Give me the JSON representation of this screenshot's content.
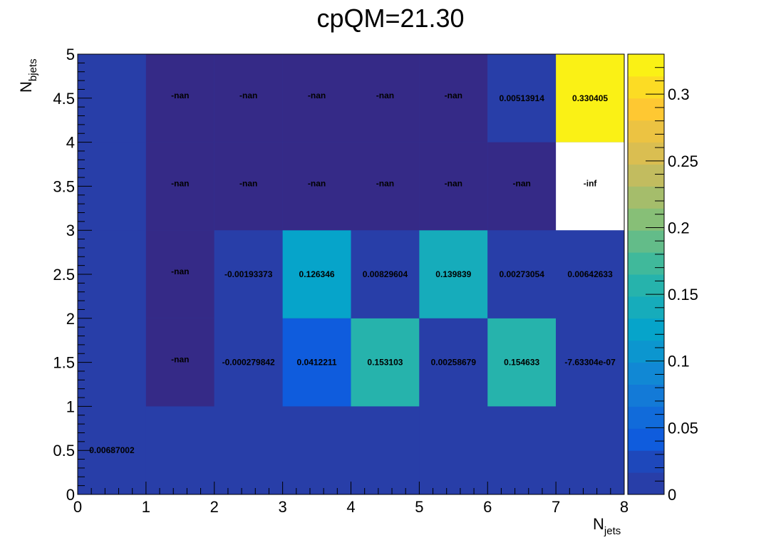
{
  "chart_data": {
    "type": "heatmap",
    "title": "cpQM=21.30",
    "xlabel": {
      "base": "N",
      "sub": "jets"
    },
    "ylabel": {
      "base": "N",
      "sub": "bjets"
    },
    "xlim": [
      0,
      8
    ],
    "ylim": [
      0,
      5
    ],
    "x_ticks": [
      "0",
      "1",
      "2",
      "3",
      "4",
      "5",
      "6",
      "7",
      "8"
    ],
    "y_ticks": [
      "0",
      "0.5",
      "1",
      "1.5",
      "2",
      "2.5",
      "3",
      "3.5",
      "4",
      "4.5",
      "5"
    ],
    "x_bin_edges": [
      0,
      1,
      2,
      3,
      4,
      5,
      6,
      7,
      8
    ],
    "y_bin_edges": [
      0,
      1,
      2,
      3,
      4,
      5
    ],
    "zlim": [
      0,
      0.33
    ],
    "z_ticks": [
      "0",
      "0.05",
      "0.1",
      "0.15",
      "0.2",
      "0.25",
      "0.3"
    ],
    "colormap": [
      "#352a87",
      "#0f5cdd",
      "#1481d6",
      "#06a4ca",
      "#2eb7a4",
      "#87bf77",
      "#d1bb59",
      "#fec832",
      "#f9fb0e"
    ],
    "cells": [
      {
        "x": 0,
        "y": 0,
        "value": 0.00687002,
        "label": "0.00687002"
      },
      {
        "x": 1,
        "y": 0,
        "value": 0.00687002,
        "label": ""
      },
      {
        "x": 2,
        "y": 0,
        "value": 0.00687002,
        "label": ""
      },
      {
        "x": 3,
        "y": 0,
        "value": 0.00687002,
        "label": ""
      },
      {
        "x": 4,
        "y": 0,
        "value": 0.00687002,
        "label": ""
      },
      {
        "x": 5,
        "y": 0,
        "value": 0.00687002,
        "label": ""
      },
      {
        "x": 6,
        "y": 0,
        "value": 0.00687002,
        "label": ""
      },
      {
        "x": 7,
        "y": 0,
        "value": 0.00687002,
        "label": ""
      },
      {
        "x": 0,
        "y": 1,
        "value": 0.0,
        "label": ""
      },
      {
        "x": 1,
        "y": 1,
        "value": "nan",
        "label": "-nan"
      },
      {
        "x": 2,
        "y": 1,
        "value": -0.000279842,
        "label": "-0.000279842"
      },
      {
        "x": 3,
        "y": 1,
        "value": 0.0412211,
        "label": "0.0412211"
      },
      {
        "x": 4,
        "y": 1,
        "value": 0.153103,
        "label": "0.153103"
      },
      {
        "x": 5,
        "y": 1,
        "value": 0.00258679,
        "label": "0.00258679"
      },
      {
        "x": 6,
        "y": 1,
        "value": 0.154633,
        "label": "0.154633"
      },
      {
        "x": 7,
        "y": 1,
        "value": -7.63304e-07,
        "label": "-7.63304e-07"
      },
      {
        "x": 0,
        "y": 2,
        "value": 0.0,
        "label": ""
      },
      {
        "x": 1,
        "y": 2,
        "value": "nan",
        "label": "-nan"
      },
      {
        "x": 2,
        "y": 2,
        "value": -0.00193373,
        "label": "-0.00193373"
      },
      {
        "x": 3,
        "y": 2,
        "value": 0.126346,
        "label": "0.126346"
      },
      {
        "x": 4,
        "y": 2,
        "value": 0.00829604,
        "label": "0.00829604"
      },
      {
        "x": 5,
        "y": 2,
        "value": 0.139839,
        "label": "0.139839"
      },
      {
        "x": 6,
        "y": 2,
        "value": 0.00273054,
        "label": "0.00273054"
      },
      {
        "x": 7,
        "y": 2,
        "value": 0.00642633,
        "label": "0.00642633"
      },
      {
        "x": 0,
        "y": 3,
        "value": 0.0,
        "label": ""
      },
      {
        "x": 1,
        "y": 3,
        "value": "nan",
        "label": "-nan"
      },
      {
        "x": 2,
        "y": 3,
        "value": "nan",
        "label": "-nan"
      },
      {
        "x": 3,
        "y": 3,
        "value": "nan",
        "label": "-nan"
      },
      {
        "x": 4,
        "y": 3,
        "value": "nan",
        "label": "-nan"
      },
      {
        "x": 5,
        "y": 3,
        "value": "nan",
        "label": "-nan"
      },
      {
        "x": 6,
        "y": 3,
        "value": "nan",
        "label": "-nan"
      },
      {
        "x": 7,
        "y": 3,
        "value": "-inf",
        "label": "-inf"
      },
      {
        "x": 0,
        "y": 4,
        "value": 0.0,
        "label": ""
      },
      {
        "x": 1,
        "y": 4,
        "value": "nan",
        "label": "-nan"
      },
      {
        "x": 2,
        "y": 4,
        "value": "nan",
        "label": "-nan"
      },
      {
        "x": 3,
        "y": 4,
        "value": "nan",
        "label": "-nan"
      },
      {
        "x": 4,
        "y": 4,
        "value": "nan",
        "label": "-nan"
      },
      {
        "x": 5,
        "y": 4,
        "value": "nan",
        "label": "-nan"
      },
      {
        "x": 6,
        "y": 4,
        "value": 0.00513914,
        "label": "0.00513914"
      },
      {
        "x": 7,
        "y": 4,
        "value": 0.330405,
        "label": "0.330405"
      }
    ],
    "colors": {
      "nan": "#352a87",
      "low": "#283ea8",
      "inf": "#ffffff"
    }
  }
}
